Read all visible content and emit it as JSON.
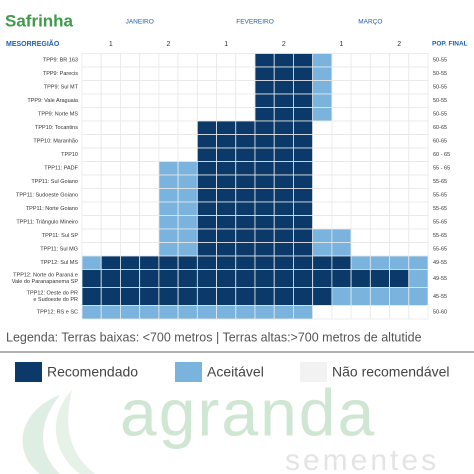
{
  "header": {
    "title": "Safrinha",
    "months": [
      "JANEIRO",
      "FEVEREIRO",
      "MARÇO"
    ],
    "row_header": "MESORREGIÃO",
    "halves": [
      "1",
      "2",
      "1",
      "2",
      "1",
      "2"
    ],
    "pop_header": "POP. FINAL"
  },
  "table": {
    "rows": [
      {
        "label": [
          "TPP9: BR 163"
        ],
        "pop": "50-55",
        "cells": [
          "#ffffff",
          "#ffffff",
          "#ffffff",
          "#ffffff",
          "#ffffff",
          "#ffffff",
          "#ffffff",
          "#ffffff",
          "#ffffff",
          "#0b3a6a",
          "#0b3a6a",
          "#0b3a6a",
          "#7ab4de",
          "#ffffff",
          "#ffffff",
          "#ffffff",
          "#ffffff",
          "#ffffff"
        ]
      },
      {
        "label": [
          "TPP9: Parecis"
        ],
        "pop": "50-55",
        "cells": [
          "#ffffff",
          "#ffffff",
          "#ffffff",
          "#ffffff",
          "#ffffff",
          "#ffffff",
          "#ffffff",
          "#ffffff",
          "#ffffff",
          "#0b3a6a",
          "#0b3a6a",
          "#0b3a6a",
          "#7ab4de",
          "#ffffff",
          "#ffffff",
          "#ffffff",
          "#ffffff",
          "#ffffff"
        ]
      },
      {
        "label": [
          "TPP9: Sul MT"
        ],
        "pop": "50-55",
        "cells": [
          "#ffffff",
          "#ffffff",
          "#ffffff",
          "#ffffff",
          "#ffffff",
          "#ffffff",
          "#ffffff",
          "#ffffff",
          "#ffffff",
          "#0b3a6a",
          "#0b3a6a",
          "#0b3a6a",
          "#7ab4de",
          "#ffffff",
          "#ffffff",
          "#ffffff",
          "#ffffff",
          "#ffffff"
        ]
      },
      {
        "label": [
          "TPP9: Vale Araguaia"
        ],
        "pop": "50-55",
        "cells": [
          "#ffffff",
          "#ffffff",
          "#ffffff",
          "#ffffff",
          "#ffffff",
          "#ffffff",
          "#ffffff",
          "#ffffff",
          "#ffffff",
          "#0b3a6a",
          "#0b3a6a",
          "#0b3a6a",
          "#7ab4de",
          "#ffffff",
          "#ffffff",
          "#ffffff",
          "#ffffff",
          "#ffffff"
        ]
      },
      {
        "label": [
          "TPP9: Norte MS"
        ],
        "pop": "50-55",
        "cells": [
          "#ffffff",
          "#ffffff",
          "#ffffff",
          "#ffffff",
          "#ffffff",
          "#ffffff",
          "#ffffff",
          "#ffffff",
          "#ffffff",
          "#0b3a6a",
          "#0b3a6a",
          "#0b3a6a",
          "#7ab4de",
          "#ffffff",
          "#ffffff",
          "#ffffff",
          "#ffffff",
          "#ffffff"
        ]
      },
      {
        "label": [
          "TPP10: Tocantins"
        ],
        "pop": "60-65",
        "cells": [
          "#ffffff",
          "#ffffff",
          "#ffffff",
          "#ffffff",
          "#ffffff",
          "#ffffff",
          "#0b3a6a",
          "#0b3a6a",
          "#0b3a6a",
          "#0b3a6a",
          "#0b3a6a",
          "#0b3a6a",
          "#ffffff",
          "#ffffff",
          "#ffffff",
          "#ffffff",
          "#ffffff",
          "#ffffff"
        ]
      },
      {
        "label": [
          "TPP10: Maranhão"
        ],
        "pop": "60-65",
        "cells": [
          "#ffffff",
          "#ffffff",
          "#ffffff",
          "#ffffff",
          "#ffffff",
          "#ffffff",
          "#0b3a6a",
          "#0b3a6a",
          "#0b3a6a",
          "#0b3a6a",
          "#0b3a6a",
          "#0b3a6a",
          "#ffffff",
          "#ffffff",
          "#ffffff",
          "#ffffff",
          "#ffffff",
          "#ffffff"
        ]
      },
      {
        "label": [
          "TPP10"
        ],
        "pop": "60 - 65",
        "cells": [
          "#ffffff",
          "#ffffff",
          "#ffffff",
          "#ffffff",
          "#ffffff",
          "#ffffff",
          "#0b3a6a",
          "#0b3a6a",
          "#0b3a6a",
          "#0b3a6a",
          "#0b3a6a",
          "#0b3a6a",
          "#ffffff",
          "#ffffff",
          "#ffffff",
          "#ffffff",
          "#ffffff",
          "#ffffff"
        ]
      },
      {
        "label": [
          "TPP11: PADF"
        ],
        "pop": "55 - 65",
        "cells": [
          "#ffffff",
          "#ffffff",
          "#ffffff",
          "#ffffff",
          "#7ab4de",
          "#7ab4de",
          "#0b3a6a",
          "#0b3a6a",
          "#0b3a6a",
          "#0b3a6a",
          "#0b3a6a",
          "#0b3a6a",
          "#ffffff",
          "#ffffff",
          "#ffffff",
          "#ffffff",
          "#ffffff",
          "#ffffff"
        ]
      },
      {
        "label": [
          "TPP11: Sul Goiano"
        ],
        "pop": "55-65",
        "cells": [
          "#ffffff",
          "#ffffff",
          "#ffffff",
          "#ffffff",
          "#7ab4de",
          "#7ab4de",
          "#0b3a6a",
          "#0b3a6a",
          "#0b3a6a",
          "#0b3a6a",
          "#0b3a6a",
          "#0b3a6a",
          "#ffffff",
          "#ffffff",
          "#ffffff",
          "#ffffff",
          "#ffffff",
          "#ffffff"
        ]
      },
      {
        "label": [
          "TPP11: Sudoeste Goiano"
        ],
        "pop": "55-65",
        "cells": [
          "#ffffff",
          "#ffffff",
          "#ffffff",
          "#ffffff",
          "#7ab4de",
          "#7ab4de",
          "#0b3a6a",
          "#0b3a6a",
          "#0b3a6a",
          "#0b3a6a",
          "#0b3a6a",
          "#0b3a6a",
          "#ffffff",
          "#ffffff",
          "#ffffff",
          "#ffffff",
          "#ffffff",
          "#ffffff"
        ]
      },
      {
        "label": [
          "TPP11: Norte Goiano"
        ],
        "pop": "55-65",
        "cells": [
          "#ffffff",
          "#ffffff",
          "#ffffff",
          "#ffffff",
          "#7ab4de",
          "#7ab4de",
          "#0b3a6a",
          "#0b3a6a",
          "#0b3a6a",
          "#0b3a6a",
          "#0b3a6a",
          "#0b3a6a",
          "#ffffff",
          "#ffffff",
          "#ffffff",
          "#ffffff",
          "#ffffff",
          "#ffffff"
        ]
      },
      {
        "label": [
          "TPP11: Triângulo Mineiro"
        ],
        "pop": "55-65",
        "cells": [
          "#ffffff",
          "#ffffff",
          "#ffffff",
          "#ffffff",
          "#7ab4de",
          "#7ab4de",
          "#0b3a6a",
          "#0b3a6a",
          "#0b3a6a",
          "#0b3a6a",
          "#0b3a6a",
          "#0b3a6a",
          "#ffffff",
          "#ffffff",
          "#ffffff",
          "#ffffff",
          "#ffffff",
          "#ffffff"
        ]
      },
      {
        "label": [
          "TPP11: Sul SP"
        ],
        "pop": "55-65",
        "cells": [
          "#ffffff",
          "#ffffff",
          "#ffffff",
          "#ffffff",
          "#7ab4de",
          "#7ab4de",
          "#0b3a6a",
          "#0b3a6a",
          "#0b3a6a",
          "#0b3a6a",
          "#0b3a6a",
          "#0b3a6a",
          "#7ab4de",
          "#7ab4de",
          "#ffffff",
          "#ffffff",
          "#ffffff",
          "#ffffff"
        ]
      },
      {
        "label": [
          "TPP11: Sul MG"
        ],
        "pop": "55-65",
        "cells": [
          "#ffffff",
          "#ffffff",
          "#ffffff",
          "#ffffff",
          "#7ab4de",
          "#7ab4de",
          "#0b3a6a",
          "#0b3a6a",
          "#0b3a6a",
          "#0b3a6a",
          "#0b3a6a",
          "#0b3a6a",
          "#7ab4de",
          "#7ab4de",
          "#ffffff",
          "#ffffff",
          "#ffffff",
          "#ffffff"
        ]
      },
      {
        "label": [
          "TPP12: Sul MS"
        ],
        "pop": "49-55",
        "cells": [
          "#7ab4de",
          "#0b3a6a",
          "#0b3a6a",
          "#0b3a6a",
          "#0b3a6a",
          "#0b3a6a",
          "#0b3a6a",
          "#0b3a6a",
          "#0b3a6a",
          "#0b3a6a",
          "#0b3a6a",
          "#0b3a6a",
          "#0b3a6a",
          "#0b3a6a",
          "#7ab4de",
          "#7ab4de",
          "#7ab4de",
          "#7ab4de"
        ]
      },
      {
        "label": [
          "TPP12: Norte do Paraná e",
          "Vale do Paranapanema SP"
        ],
        "pop": "49-55",
        "cells": [
          "#0b3a6a",
          "#0b3a6a",
          "#0b3a6a",
          "#0b3a6a",
          "#0b3a6a",
          "#0b3a6a",
          "#0b3a6a",
          "#0b3a6a",
          "#0b3a6a",
          "#0b3a6a",
          "#0b3a6a",
          "#0b3a6a",
          "#0b3a6a",
          "#0b3a6a",
          "#0b3a6a",
          "#0b3a6a",
          "#0b3a6a",
          "#7ab4de"
        ]
      },
      {
        "label": [
          "TPP12: Oeste do PR",
          "e Sudoeste do PR"
        ],
        "pop": "45-55",
        "cells": [
          "#0b3a6a",
          "#0b3a6a",
          "#0b3a6a",
          "#0b3a6a",
          "#0b3a6a",
          "#0b3a6a",
          "#0b3a6a",
          "#0b3a6a",
          "#0b3a6a",
          "#0b3a6a",
          "#0b3a6a",
          "#0b3a6a",
          "#0b3a6a",
          "#7ab4de",
          "#7ab4de",
          "#7ab4de",
          "#7ab4de",
          "#7ab4de"
        ]
      },
      {
        "label": [
          "TPP12: RS e SC"
        ],
        "pop": "50-60",
        "cells": [
          "#7ab4de",
          "#7ab4de",
          "#7ab4de",
          "#7ab4de",
          "#7ab4de",
          "#7ab4de",
          "#7ab4de",
          "#7ab4de",
          "#7ab4de",
          "#7ab4de",
          "#7ab4de",
          "#7ab4de",
          "#ffffff",
          "#ffffff",
          "#ffffff",
          "#ffffff",
          "#ffffff",
          "#ffffff"
        ]
      }
    ]
  },
  "note": "Legenda: Terras baixas: <700 metros | Terras altas:>700 metros de altutide",
  "legend": {
    "items": [
      {
        "label": "Recomendado",
        "color": "#0b3a6a"
      },
      {
        "label": "Aceitável",
        "color": "#7ab4de"
      },
      {
        "label": "Não recomendável",
        "color": "#f2f2f2"
      }
    ]
  },
  "logo": {
    "name": "agranda",
    "tagline": "sementes"
  }
}
